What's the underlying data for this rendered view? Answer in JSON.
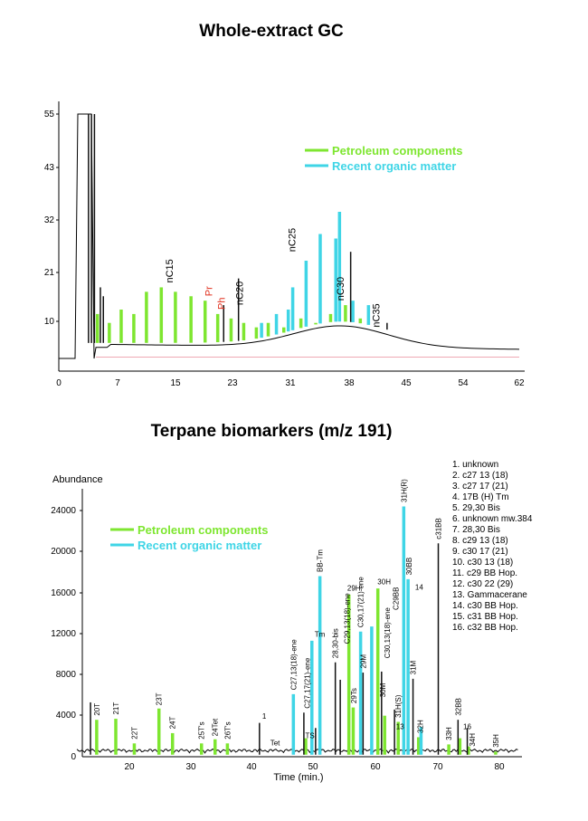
{
  "chart_data": [
    {
      "type": "line",
      "title": "Whole-extract GC",
      "xlabel": "",
      "ylabel": "",
      "xlim": [
        0,
        62
      ],
      "ylim": [
        0,
        55
      ],
      "x_ticks": [
        "0",
        "7",
        "15",
        "23",
        "31",
        "38",
        "45",
        "54",
        "62"
      ],
      "y_ticks": [
        "10",
        "21",
        "32",
        "43",
        "55"
      ],
      "legend": {
        "placement": "top-right",
        "entries": [
          {
            "name": "Petroleum components",
            "color": "#7ee630"
          },
          {
            "name": "Recent organic matter",
            "color": "#3fd5e6"
          }
        ]
      },
      "peaks": [
        {
          "x": 5.2,
          "y": 10,
          "cls": "green"
        },
        {
          "x": 6.8,
          "y": 8,
          "cls": "green"
        },
        {
          "x": 8.4,
          "y": 11,
          "cls": "green"
        },
        {
          "x": 10.1,
          "y": 10,
          "cls": "green"
        },
        {
          "x": 11.8,
          "y": 15,
          "cls": "green"
        },
        {
          "x": 13.8,
          "y": 16,
          "cls": "green"
        },
        {
          "x": 15.7,
          "y": 15,
          "cls": "green"
        },
        {
          "x": 17.8,
          "y": 14,
          "cls": "green"
        },
        {
          "x": 19.7,
          "y": 13,
          "cls": "green"
        },
        {
          "x": 21.4,
          "y": 10,
          "cls": "green"
        },
        {
          "x": 23.2,
          "y": 9,
          "cls": "green"
        },
        {
          "x": 24.9,
          "y": 8,
          "cls": "green"
        },
        {
          "x": 26.6,
          "y": 7,
          "cls": "green"
        },
        {
          "x": 28.2,
          "y": 8,
          "cls": "green"
        },
        {
          "x": 30.3,
          "y": 7,
          "cls": "green"
        },
        {
          "x": 32.6,
          "y": 9,
          "cls": "green"
        },
        {
          "x": 34.6,
          "y": 8,
          "cls": "green"
        },
        {
          "x": 36.6,
          "y": 10,
          "cls": "green"
        },
        {
          "x": 38.6,
          "y": 12,
          "cls": "green"
        },
        {
          "x": 40.6,
          "y": 9,
          "cls": "green"
        },
        {
          "x": 43.0,
          "y": 7,
          "cls": "green"
        },
        {
          "x": 27.3,
          "y": 8,
          "cls": "cyan"
        },
        {
          "x": 29.3,
          "y": 10,
          "cls": "cyan"
        },
        {
          "x": 30.9,
          "y": 11,
          "cls": "cyan"
        },
        {
          "x": 31.5,
          "y": 16,
          "cls": "cyan"
        },
        {
          "x": 33.3,
          "y": 22,
          "cls": "cyan"
        },
        {
          "x": 35.2,
          "y": 28,
          "cls": "cyan"
        },
        {
          "x": 37.3,
          "y": 27,
          "cls": "cyan"
        },
        {
          "x": 37.8,
          "y": 33,
          "cls": "cyan"
        },
        {
          "x": 39.6,
          "y": 13,
          "cls": "cyan"
        },
        {
          "x": 41.7,
          "y": 12,
          "cls": "cyan"
        },
        {
          "x": 4.0,
          "y": 55,
          "cls": "black"
        },
        {
          "x": 4.4,
          "y": 55,
          "cls": "black"
        },
        {
          "x": 4.8,
          "y": 55,
          "cls": "black"
        },
        {
          "x": 5.6,
          "y": 16,
          "cls": "black"
        },
        {
          "x": 6.0,
          "y": 14,
          "cls": "black"
        },
        {
          "x": 22.2,
          "y": 12,
          "cls": "black"
        },
        {
          "x": 24.2,
          "y": 18,
          "cls": "black"
        },
        {
          "x": 39.3,
          "y": 24,
          "cls": "black"
        },
        {
          "x": 44.2,
          "y": 8,
          "cls": "black"
        }
      ],
      "annotations": [
        {
          "text": "nC15",
          "x": 15.0,
          "y": 17,
          "color": "#000"
        },
        {
          "text": "Pr",
          "x": 20.3,
          "y": 14,
          "color": "#e0301e"
        },
        {
          "text": "Ph",
          "x": 22.0,
          "y": 11,
          "color": "#e0301e"
        },
        {
          "text": "nC20",
          "x": 24.4,
          "y": 12,
          "color": "#000"
        },
        {
          "text": "nC25",
          "x": 31.5,
          "y": 24,
          "color": "#000"
        },
        {
          "text": "nC30",
          "x": 38.0,
          "y": 13,
          "color": "#000"
        },
        {
          "text": "nC35",
          "x": 42.8,
          "y": 7,
          "color": "#000"
        }
      ]
    },
    {
      "type": "line",
      "title": "Terpane biomarkers (m/z 191)",
      "xlabel": "Time (min.)",
      "ylabel": "Abundance",
      "xlim": [
        11,
        83
      ],
      "ylim": [
        0,
        25200
      ],
      "x_ticks": [
        "20",
        "30",
        "40",
        "50",
        "60",
        "70",
        "80"
      ],
      "y_ticks": [
        "0",
        "4000",
        "8000",
        "12000",
        "16000",
        "20000",
        "24000"
      ],
      "legend": {
        "placement": "top-left",
        "entries": [
          {
            "name": "Petroleum components",
            "color": "#7ee630"
          },
          {
            "name": "Recent organic matter",
            "color": "#3fd5e6"
          }
        ]
      },
      "key": [
        "1. unknown",
        "2. c27 13 (18)",
        "3. c27 17 (21)",
        "4. 17B (H) Tm",
        "5. 29,30 Bis",
        "6. unknown mw.384",
        "7. 28,30 Bis",
        "8. c29 13 (18)",
        "9. c30 17 (21)",
        "10. c30 13 (18)",
        "11. c29 BB Hop.",
        "12. c30 22 (29)",
        "13. Gammacerane",
        "14. c30 BB Hop.",
        "15. c31 BB Hop.",
        "16. c32 BB Hop."
      ],
      "peaks": [
        {
          "x": 14.7,
          "y": 3600,
          "cls": "green"
        },
        {
          "x": 17.8,
          "y": 3700,
          "cls": "green"
        },
        {
          "x": 20.8,
          "y": 1300,
          "cls": "green"
        },
        {
          "x": 24.8,
          "y": 4700,
          "cls": "green"
        },
        {
          "x": 27.0,
          "y": 2300,
          "cls": "green"
        },
        {
          "x": 31.7,
          "y": 1300,
          "cls": "green"
        },
        {
          "x": 33.9,
          "y": 1700,
          "cls": "green"
        },
        {
          "x": 35.9,
          "y": 1300,
          "cls": "green"
        },
        {
          "x": 48.6,
          "y": 1800,
          "cls": "green"
        },
        {
          "x": 55.6,
          "y": 15800,
          "cls": "green"
        },
        {
          "x": 56.3,
          "y": 4800,
          "cls": "green"
        },
        {
          "x": 60.3,
          "y": 16400,
          "cls": "green"
        },
        {
          "x": 61.4,
          "y": 4000,
          "cls": "green"
        },
        {
          "x": 63.6,
          "y": 3400,
          "cls": "green"
        },
        {
          "x": 66.9,
          "y": 1900,
          "cls": "green"
        },
        {
          "x": 71.8,
          "y": 1200,
          "cls": "green"
        },
        {
          "x": 73.6,
          "y": 1800,
          "cls": "green"
        },
        {
          "x": 75.0,
          "y": 1000,
          "cls": "green"
        },
        {
          "x": 79.4,
          "y": 500,
          "cls": "green"
        },
        {
          "x": 46.6,
          "y": 6100,
          "cls": "cyan"
        },
        {
          "x": 49.6,
          "y": 11300,
          "cls": "cyan"
        },
        {
          "x": 50.9,
          "y": 17600,
          "cls": "cyan"
        },
        {
          "x": 57.5,
          "y": 12200,
          "cls": "cyan"
        },
        {
          "x": 59.3,
          "y": 12700,
          "cls": "cyan"
        },
        {
          "x": 64.5,
          "y": 24400,
          "cls": "cyan"
        },
        {
          "x": 65.2,
          "y": 17300,
          "cls": "cyan"
        },
        {
          "x": 67.3,
          "y": 2900,
          "cls": "cyan"
        },
        {
          "x": 13.7,
          "y": 5300,
          "cls": "black"
        },
        {
          "x": 41.1,
          "y": 3300,
          "cls": "black"
        },
        {
          "x": 48.3,
          "y": 4300,
          "cls": "black"
        },
        {
          "x": 50.2,
          "y": 2800,
          "cls": "black"
        },
        {
          "x": 53.4,
          "y": 9200,
          "cls": "black"
        },
        {
          "x": 54.2,
          "y": 7500,
          "cls": "black"
        },
        {
          "x": 57.9,
          "y": 8200,
          "cls": "black"
        },
        {
          "x": 60.9,
          "y": 8300,
          "cls": "black"
        },
        {
          "x": 63.0,
          "y": 4600,
          "cls": "black"
        },
        {
          "x": 66.0,
          "y": 7600,
          "cls": "black"
        },
        {
          "x": 70.1,
          "y": 20800,
          "cls": "black"
        },
        {
          "x": 73.3,
          "y": 3600,
          "cls": "black"
        },
        {
          "x": 74.8,
          "y": 2800,
          "cls": "black"
        }
      ],
      "annotations": [
        {
          "text": "20T",
          "x": 14.7,
          "y": 4000,
          "rot": -90
        },
        {
          "text": "21T",
          "x": 17.8,
          "y": 4100,
          "rot": -90
        },
        {
          "text": "22T",
          "x": 20.8,
          "y": 1700,
          "rot": -90
        },
        {
          "text": "23T",
          "x": 24.8,
          "y": 5000,
          "rot": -90
        },
        {
          "text": "24T",
          "x": 27.0,
          "y": 2700,
          "rot": -90
        },
        {
          "text": "25T's",
          "x": 31.7,
          "y": 1700,
          "rot": -90
        },
        {
          "text": "24Tet",
          "x": 33.9,
          "y": 2000,
          "rot": -90
        },
        {
          "text": "26T's",
          "x": 35.9,
          "y": 1700,
          "rot": -90
        },
        {
          "text": "1",
          "x": 41.1,
          "y": 3700,
          "rot": 0
        },
        {
          "text": "Tet",
          "x": 42.4,
          "y": 1100,
          "rot": 0
        },
        {
          "text": "C27,13(18)-ene",
          "x": 46.6,
          "y": 6500,
          "rot": -90
        },
        {
          "text": "TS",
          "x": 48.1,
          "y": 1800,
          "rot": 0
        },
        {
          "text": "C27,17(21)-ene",
          "x": 48.8,
          "y": 4700,
          "rot": -90
        },
        {
          "text": "Tm",
          "x": 49.6,
          "y": 11700,
          "rot": 0
        },
        {
          "text": "BB-Tm",
          "x": 50.9,
          "y": 18000,
          "rot": -90
        },
        {
          "text": "28,30-bis",
          "x": 53.4,
          "y": 9600,
          "rot": -90
        },
        {
          "text": "C29,13(18)-ene",
          "x": 55.3,
          "y": 11000,
          "rot": -90
        },
        {
          "text": "29H",
          "x": 54.9,
          "y": 16200,
          "rot": 0
        },
        {
          "text": "29Ts",
          "x": 56.4,
          "y": 5200,
          "rot": -90
        },
        {
          "text": "C30,17(21)-ene",
          "x": 57.5,
          "y": 12600,
          "rot": -90
        },
        {
          "text": "29M",
          "x": 57.9,
          "y": 8600,
          "rot": -90
        },
        {
          "text": "30H",
          "x": 59.8,
          "y": 16800,
          "rot": 0
        },
        {
          "text": "C30,13(18)-ene",
          "x": 61.8,
          "y": 9600,
          "rot": -90
        },
        {
          "text": "30M",
          "x": 61.1,
          "y": 5800,
          "rot": -90
        },
        {
          "text": "C29BB",
          "x": 63.2,
          "y": 14300,
          "rot": -90
        },
        {
          "text": "31H(S)",
          "x": 63.6,
          "y": 3800,
          "rot": -90
        },
        {
          "text": "13",
          "x": 62.8,
          "y": 2700,
          "rot": 0
        },
        {
          "text": "31H(R)",
          "x": 64.5,
          "y": 24800,
          "rot": -90
        },
        {
          "text": "30BB",
          "x": 65.3,
          "y": 17700,
          "rot": -90
        },
        {
          "text": "14",
          "x": 65.9,
          "y": 16300,
          "rot": 0
        },
        {
          "text": "31M",
          "x": 66.0,
          "y": 8000,
          "rot": -90
        },
        {
          "text": "32H",
          "x": 67.2,
          "y": 2300,
          "rot": -90
        },
        {
          "text": "c31BB",
          "x": 70.1,
          "y": 21200,
          "rot": -90
        },
        {
          "text": "33H",
          "x": 71.8,
          "y": 1600,
          "rot": -90
        },
        {
          "text": "32BB",
          "x": 73.3,
          "y": 4000,
          "rot": -90
        },
        {
          "text": "16",
          "x": 73.7,
          "y": 2700,
          "rot": 0
        },
        {
          "text": "34H",
          "x": 75.6,
          "y": 1000,
          "rot": -90
        },
        {
          "text": "35H",
          "x": 79.4,
          "y": 900,
          "rot": -90
        }
      ]
    }
  ]
}
